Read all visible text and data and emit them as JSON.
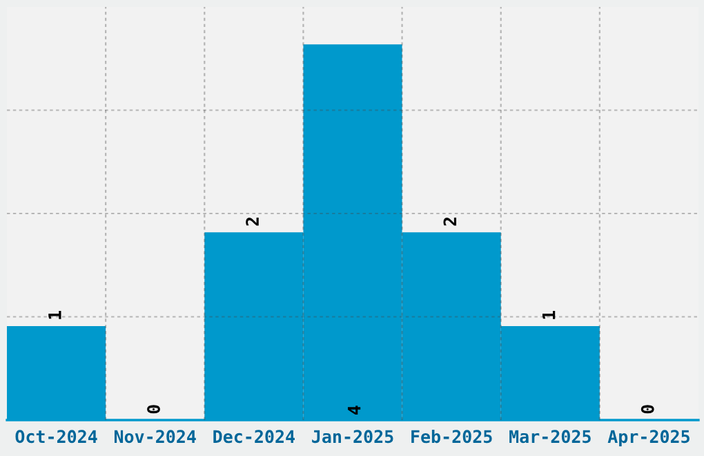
{
  "chart_data": {
    "type": "bar",
    "categories": [
      "Oct-2024",
      "Nov-2024",
      "Dec-2024",
      "Jan-2025",
      "Feb-2025",
      "Mar-2025",
      "Apr-2025"
    ],
    "values": [
      1,
      0,
      2,
      4,
      2,
      1,
      0
    ],
    "color": "#0099cc",
    "ylim": [
      0,
      4.4
    ],
    "yticks": [
      {
        "value": 1.1,
        "label": null
      },
      {
        "value": 2.2,
        "label": null
      },
      {
        "value": 3.3,
        "label": null
      }
    ],
    "tick_labels": "x",
    "grid": true,
    "data_labels": true
  }
}
